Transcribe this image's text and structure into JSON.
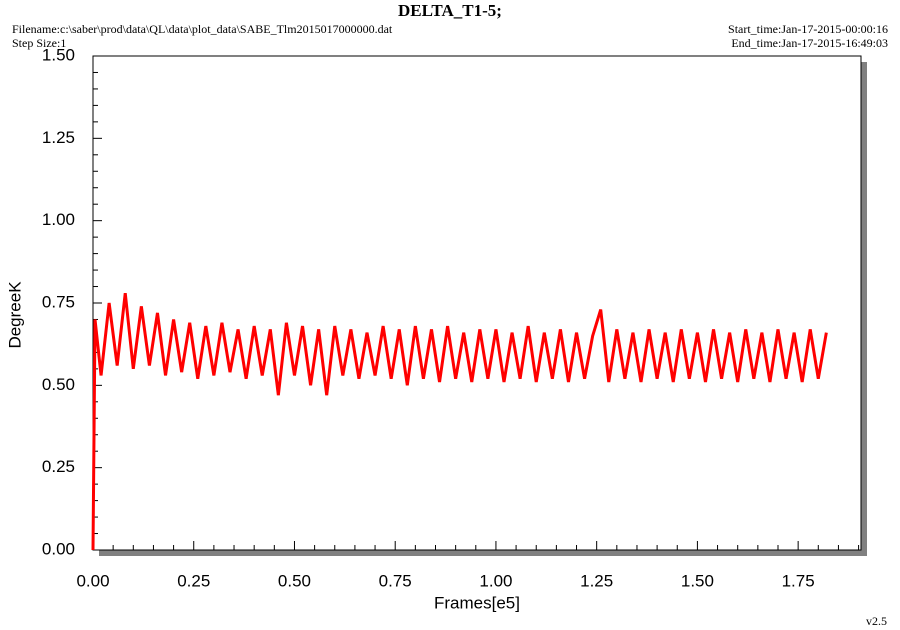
{
  "chart_data": {
    "type": "line",
    "title": "DELTA_T1-5;",
    "filename": "Filename:c:\\saber\\prod\\data\\QL\\data\\plot_data\\SABE_Tlm2015017000000.dat",
    "step_size": "Step Size:1",
    "start_time": "Start_time:Jan-17-2015-00:00:16",
    "end_time": "End_time:Jan-17-2015-16:49:03",
    "version": "v2.5",
    "xlabel": "Frames[e5]",
    "ylabel": "DegreeK",
    "xlim": [
      0,
      1.906
    ],
    "ylim": [
      0,
      1.5
    ],
    "xticks": [
      {
        "value": 0,
        "label": "0.00"
      },
      {
        "value": 0.25,
        "label": "0.25"
      },
      {
        "value": 0.5,
        "label": "0.50"
      },
      {
        "value": 0.75,
        "label": "0.75"
      },
      {
        "value": 1,
        "label": "1.00"
      },
      {
        "value": 1.25,
        "label": "1.25"
      },
      {
        "value": 1.5,
        "label": "1.50"
      },
      {
        "value": 1.75,
        "label": "1.75"
      }
    ],
    "yticks": [
      {
        "value": 0,
        "label": "0.00"
      },
      {
        "value": 0.25,
        "label": "0.25"
      },
      {
        "value": 0.5,
        "label": "0.50"
      },
      {
        "value": 0.75,
        "label": "0.75"
      },
      {
        "value": 1,
        "label": "1.00"
      },
      {
        "value": 1.25,
        "label": "1.25"
      },
      {
        "value": 1.5,
        "label": "1.50"
      }
    ],
    "x": [
      0,
      0.005,
      0.02,
      0.04,
      0.06,
      0.08,
      0.1,
      0.12,
      0.14,
      0.16,
      0.18,
      0.2,
      0.22,
      0.24,
      0.26,
      0.28,
      0.3,
      0.32,
      0.34,
      0.36,
      0.38,
      0.4,
      0.42,
      0.44,
      0.46,
      0.48,
      0.5,
      0.52,
      0.54,
      0.56,
      0.58,
      0.6,
      0.62,
      0.64,
      0.66,
      0.68,
      0.7,
      0.72,
      0.74,
      0.76,
      0.78,
      0.8,
      0.82,
      0.84,
      0.86,
      0.88,
      0.9,
      0.92,
      0.94,
      0.96,
      0.98,
      1.0,
      1.02,
      1.04,
      1.06,
      1.08,
      1.1,
      1.12,
      1.14,
      1.16,
      1.18,
      1.2,
      1.22,
      1.24,
      1.26,
      1.28,
      1.3,
      1.32,
      1.34,
      1.36,
      1.38,
      1.4,
      1.42,
      1.44,
      1.46,
      1.48,
      1.5,
      1.52,
      1.54,
      1.56,
      1.58,
      1.6,
      1.62,
      1.64,
      1.66,
      1.68,
      1.7,
      1.72,
      1.74,
      1.76,
      1.78,
      1.8,
      1.82
    ],
    "series": [
      {
        "color": "#ff0000",
        "values": [
          0.0,
          0.7,
          0.53,
          0.75,
          0.56,
          0.78,
          0.55,
          0.74,
          0.56,
          0.72,
          0.53,
          0.7,
          0.54,
          0.69,
          0.52,
          0.68,
          0.53,
          0.69,
          0.54,
          0.67,
          0.52,
          0.68,
          0.53,
          0.67,
          0.47,
          0.69,
          0.53,
          0.68,
          0.5,
          0.67,
          0.47,
          0.68,
          0.53,
          0.67,
          0.52,
          0.66,
          0.53,
          0.68,
          0.52,
          0.67,
          0.5,
          0.68,
          0.52,
          0.67,
          0.51,
          0.68,
          0.52,
          0.66,
          0.51,
          0.67,
          0.52,
          0.67,
          0.51,
          0.66,
          0.52,
          0.68,
          0.51,
          0.66,
          0.52,
          0.67,
          0.51,
          0.66,
          0.52,
          0.65,
          0.73,
          0.51,
          0.67,
          0.52,
          0.66,
          0.51,
          0.67,
          0.52,
          0.66,
          0.51,
          0.67,
          0.52,
          0.66,
          0.51,
          0.67,
          0.52,
          0.66,
          0.51,
          0.67,
          0.52,
          0.66,
          0.51,
          0.67,
          0.52,
          0.66,
          0.51,
          0.67,
          0.52,
          0.66
        ]
      }
    ]
  }
}
